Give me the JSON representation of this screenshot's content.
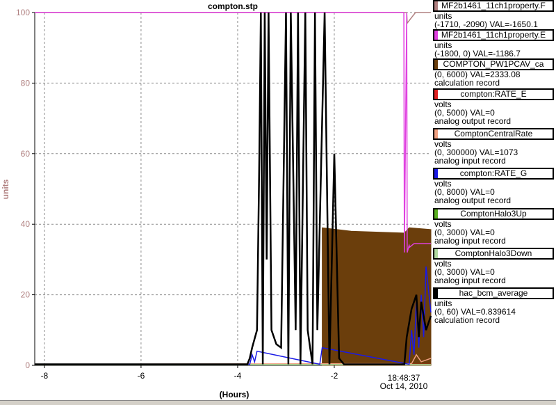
{
  "window_title": "compton.stp",
  "colors": {
    "grid": "#8c8c8c",
    "axis_label": "#b08080",
    "brown": "#6b3e0c",
    "magenta": "#e040e0",
    "black": "#000000",
    "blue": "#1a1ae6",
    "salmon": "#f0a080"
  },
  "chart_data": {
    "type": "line",
    "title": "compton.stp",
    "ylabel": "units",
    "xlabel": "(Hours)",
    "ylim": [
      0,
      100
    ],
    "xlim": [
      -8.2,
      0
    ],
    "y_ticks": [
      "0",
      "20",
      "40",
      "60",
      "80",
      "100"
    ],
    "x_ticks": [
      "-8",
      "-6",
      "-4",
      "-2"
    ],
    "x_tick_values": [
      -8,
      -6,
      -4,
      -2
    ],
    "end_time_label": "18:48:37",
    "end_date_label": "Oct 14, 2010",
    "grid": true,
    "legend_position": "right",
    "series": [
      {
        "name": "MF2b1461_11ch1property.F",
        "color": "#b08080",
        "x": [
          -8.2,
          -0.5,
          -0.49,
          -0.32,
          0
        ],
        "y": [
          100,
          100,
          97,
          100,
          100
        ]
      },
      {
        "name": "MF2b1461_11ch1property.E",
        "color": "#e040e0",
        "x": [
          -8.2,
          -0.56,
          -0.55,
          -0.5,
          -0.49,
          -0.45,
          -0.44,
          -0.35,
          0
        ],
        "y": [
          100,
          100,
          32,
          100,
          32,
          34,
          33.5,
          34.5,
          34.5
        ]
      },
      {
        "name": "COMPTON_PW1PCAV_ca",
        "color": "#6b3e0c",
        "x": [
          -2.25,
          -1.65,
          -0.55,
          -0.45,
          0
        ],
        "y": [
          39,
          38,
          37.5,
          39,
          38.5
        ]
      },
      {
        "name": "compton:RATE_E",
        "color": "#e02020",
        "x": [
          -8.2,
          0
        ],
        "y": [
          0.3,
          0.3
        ]
      },
      {
        "name": "ComptonCentralRate",
        "color": "#f0a080",
        "x": [
          -8.2,
          -0.4,
          -0.3,
          -0.2,
          0
        ],
        "y": [
          0.3,
          0.5,
          3,
          1,
          2
        ]
      },
      {
        "name": "compton:RATE_G",
        "color": "#1a1ae6",
        "x": [
          -8.2,
          -3.75,
          -3.7,
          -3.65,
          -3.6,
          -2.3,
          -2.25,
          -0.45,
          -0.4,
          -0.35,
          -0.3,
          -0.25,
          -0.2,
          -0.15,
          -0.1,
          0
        ],
        "y": [
          0.3,
          0.3,
          3,
          1,
          4,
          0.3,
          5,
          0.3,
          10,
          3,
          18,
          5,
          20,
          8,
          28,
          15
        ]
      },
      {
        "name": "ComptonHalo3Up",
        "color": "#5ab020",
        "x": [
          -8.2,
          0
        ],
        "y": [
          0.2,
          0.2
        ]
      },
      {
        "name": "ComptonHalo3Down",
        "color": "#b0d8a0",
        "x": [
          -8.2,
          0
        ],
        "y": [
          0.2,
          0.2
        ]
      },
      {
        "name": "hac_bcm_average",
        "color": "#000000",
        "x": [
          -8.2,
          -3.8,
          -3.75,
          -3.7,
          -3.6,
          -3.55,
          -3.52,
          -3.48,
          -3.44,
          -3.4,
          -3.36,
          -3.3,
          -3.2,
          -3.1,
          -3.0,
          -2.95,
          -2.9,
          -2.8,
          -2.75,
          -2.7,
          -2.6,
          -2.55,
          -2.5,
          -2.45,
          -2.4,
          -2.35,
          -2.2,
          -2.1,
          -2.0,
          -1.9,
          -1.8,
          -0.55,
          -0.5,
          -0.45,
          -0.4,
          -0.35,
          -0.3,
          -0.25,
          -0.2,
          -0.1,
          0
        ],
        "y": [
          0.3,
          0.3,
          2,
          5,
          10,
          60,
          100,
          0.3,
          100,
          30,
          100,
          10,
          6,
          5,
          100,
          0.3,
          100,
          10,
          100,
          0.3,
          100,
          10,
          5,
          0.3,
          100,
          10,
          100,
          0.3,
          60,
          2,
          0.3,
          0.3,
          8,
          12,
          16,
          18,
          20,
          8,
          18,
          10,
          14
        ]
      }
    ]
  },
  "legend": [
    {
      "name": "MF2b1461_11ch1property.F",
      "color": "#b08080",
      "unit": "units",
      "range": "(-1710, -2090) VAL=-1650.1",
      "record": ""
    },
    {
      "name": "MF2b1461_11ch1property.E",
      "color": "#e040e0",
      "unit": "units",
      "range": "(-1800, 0) VAL=-1186.7",
      "record": ""
    },
    {
      "name": "COMPTON_PW1PCAV_ca",
      "color": "#6b3e0c",
      "unit": "",
      "range": "(0, 6000) VAL=2333.08",
      "record": "calculation record"
    },
    {
      "name": "compton:RATE_E",
      "color": "#e02020",
      "unit": "volts",
      "range": "(0, 5000)  VAL=0",
      "record": "analog output record"
    },
    {
      "name": "ComptonCentralRate",
      "color": "#f0a080",
      "unit": "volts",
      "range": "(0, 300000) VAL=1073",
      "record": "analog input record"
    },
    {
      "name": "compton:RATE_G",
      "color": "#1a1ae6",
      "unit": "volts",
      "range": "(0, 8000) VAL=0",
      "record": "analog output record"
    },
    {
      "name": "ComptonHalo3Up",
      "color": "#5ab020",
      "unit": "volts",
      "range": "(0, 3000)  VAL=0",
      "record": "analog input record"
    },
    {
      "name": "ComptonHalo3Down",
      "color": "#b0d8a0",
      "unit": "volts",
      "range": "(0, 3000)  VAL=0",
      "record": "analog input record"
    },
    {
      "name": "hac_bcm_average",
      "color": "#000000",
      "unit": "units",
      "range": "(0, 60) VAL=0.839614",
      "record": "calculation record"
    }
  ]
}
